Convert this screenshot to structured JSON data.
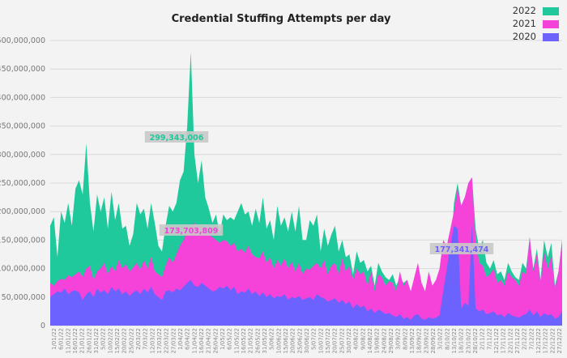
{
  "chart_data": {
    "type": "area",
    "title": "Credential Stuffing Attempts per day",
    "xlabel": "",
    "ylabel": "",
    "ylim": [
      0,
      500000000
    ],
    "y_ticks": [
      "0",
      "50,000,000",
      "100,000,000",
      "150,000,000",
      "200,000,000",
      "250,000,000",
      "300,000,000",
      "350,000,000",
      "400,000,000",
      "450,000,000",
      "500,000,000"
    ],
    "grid": true,
    "legend_position": "top-right",
    "x_tick_labels": [
      "1/01/22",
      "6/01/22",
      "11/01/22",
      "16/01/22",
      "21/01/22",
      "26/01/22",
      "31/01/22",
      "5/02/22",
      "10/02/22",
      "15/02/22",
      "20/02/22",
      "25/02/22",
      "2/03/22",
      "7/03/22",
      "12/03/22",
      "17/03/22",
      "22/03/22",
      "27/03/22",
      "1/04/22",
      "6/04/22",
      "11/04/22",
      "16/04/22",
      "21/04/22",
      "26/04/22",
      "1/05/22",
      "6/05/22",
      "11/05/22",
      "16/05/22",
      "21/05/22",
      "26/05/22",
      "31/05/22",
      "5/06/22",
      "10/06/22",
      "15/06/22",
      "20/06/22",
      "25/06/22",
      "30/06/22",
      "5/07/22",
      "10/07/22",
      "15/07/22",
      "20/07/22",
      "25/07/22",
      "30/07/22",
      "4/08/22",
      "9/08/22",
      "14/08/22",
      "19/08/22",
      "24/08/22",
      "29/08/22",
      "3/09/22",
      "8/09/22",
      "13/09/22",
      "18/09/22",
      "23/09/22",
      "28/09/22",
      "3/10/22",
      "8/10/22",
      "13/10/22",
      "18/10/22",
      "23/10/22",
      "28/10/22",
      "2/11/22",
      "7/11/22",
      "12/11/22",
      "17/11/22",
      "22/11/22",
      "27/11/22",
      "2/12/22",
      "7/12/22",
      "12/12/22",
      "17/12/22",
      "22/12/22",
      "27/12/22"
    ],
    "x_interval_days": 5,
    "series": [
      {
        "name": "2022",
        "color": "#1fc99b",
        "values": [
          175,
          190,
          120,
          200,
          180,
          215,
          175,
          240,
          255,
          230,
          320,
          215,
          165,
          230,
          200,
          225,
          170,
          235,
          185,
          215,
          170,
          175,
          140,
          160,
          215,
          195,
          205,
          170,
          215,
          180,
          140,
          130,
          175,
          210,
          200,
          215,
          255,
          270,
          350,
          480,
          300,
          250,
          290,
          225,
          205,
          180,
          195,
          160,
          195,
          185,
          190,
          185,
          200,
          215,
          195,
          200,
          175,
          205,
          180,
          225,
          170,
          185,
          150,
          210,
          175,
          190,
          165,
          200,
          165,
          210,
          150,
          150,
          185,
          175,
          195,
          130,
          170,
          140,
          160,
          175,
          130,
          150,
          120,
          125,
          90,
          130,
          110,
          115,
          95,
          105,
          70,
          110,
          95,
          85,
          80,
          90,
          70,
          85,
          75,
          80,
          60,
          75,
          95,
          70,
          60,
          90,
          70,
          65,
          85,
          95,
          90,
          120,
          215,
          250,
          210,
          225,
          250,
          260,
          170,
          135,
          150,
          110,
          100,
          115,
          90,
          95,
          80,
          110,
          95,
          85,
          80,
          110,
          100,
          155,
          100,
          135,
          80,
          150,
          120,
          145,
          70,
          95,
          150
        ]
      },
      {
        "name": "2021",
        "color": "#f542d8",
        "values": [
          75,
          70,
          78,
          82,
          80,
          88,
          85,
          90,
          95,
          85,
          100,
          105,
          80,
          95,
          100,
          110,
          90,
          105,
          95,
          115,
          100,
          108,
          95,
          102,
          110,
          98,
          115,
          100,
          120,
          95,
          90,
          85,
          105,
          120,
          110,
          125,
          140,
          150,
          165,
          174,
          180,
          170,
          175,
          168,
          160,
          155,
          150,
          145,
          150,
          148,
          140,
          145,
          130,
          135,
          128,
          140,
          125,
          120,
          118,
          130,
          110,
          120,
          100,
          115,
          105,
          118,
          100,
          112,
          95,
          110,
          90,
          100,
          98,
          105,
          110,
          100,
          115,
          90,
          105,
          110,
          90,
          118,
          95,
          105,
          80,
          100,
          90,
          95,
          70,
          95,
          60,
          90,
          85,
          70,
          78,
          75,
          60,
          95,
          70,
          80,
          60,
          85,
          110,
          75,
          60,
          95,
          70,
          80,
          100,
          150,
          140,
          170,
          200,
          240,
          210,
          225,
          250,
          260,
          150,
          110,
          105,
          85,
          90,
          100,
          75,
          80,
          70,
          95,
          85,
          80,
          70,
          95,
          90,
          155,
          95,
          125,
          75,
          130,
          100,
          120,
          65,
          95,
          150
        ]
      },
      {
        "name": "2020",
        "color": "#6c63ff",
        "values": [
          50,
          55,
          60,
          58,
          65,
          55,
          60,
          62,
          58,
          45,
          55,
          60,
          50,
          65,
          58,
          62,
          55,
          68,
          60,
          65,
          55,
          60,
          52,
          58,
          62,
          55,
          65,
          58,
          68,
          55,
          50,
          45,
          60,
          62,
          58,
          65,
          62,
          68,
          75,
          80,
          70,
          68,
          75,
          70,
          65,
          60,
          62,
          68,
          65,
          70,
          62,
          68,
          55,
          60,
          58,
          65,
          55,
          60,
          52,
          58,
          50,
          55,
          48,
          52,
          50,
          55,
          45,
          50,
          48,
          52,
          45,
          48,
          50,
          45,
          55,
          50,
          48,
          42,
          45,
          48,
          40,
          45,
          38,
          42,
          30,
          38,
          32,
          35,
          25,
          30,
          22,
          28,
          25,
          20,
          22,
          18,
          15,
          20,
          12,
          15,
          10,
          18,
          20,
          12,
          10,
          15,
          12,
          14,
          18,
          60,
          100,
          140,
          175,
          170,
          30,
          40,
          35,
          178,
          30,
          25,
          28,
          20,
          22,
          25,
          18,
          20,
          15,
          22,
          18,
          16,
          14,
          18,
          20,
          28,
          18,
          25,
          15,
          22,
          18,
          20,
          12,
          15,
          25
        ]
      }
    ],
    "annotations": [
      {
        "text": "299,343,006",
        "series": "2022",
        "color": "#1fc99b"
      },
      {
        "text": "173,703,809",
        "series": "2021",
        "color": "#f542d8"
      },
      {
        "text": "177,341,474",
        "series": "2020",
        "color": "#6c63ff"
      }
    ]
  }
}
